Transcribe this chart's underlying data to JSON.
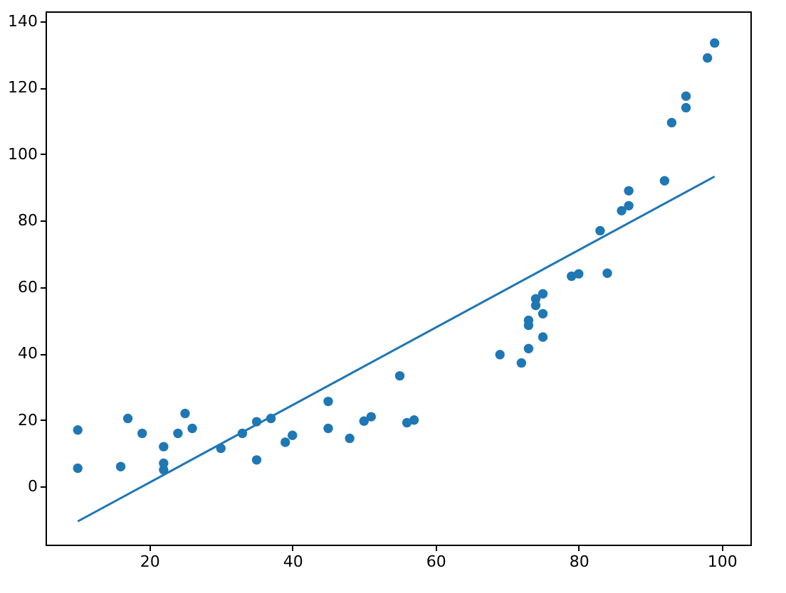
{
  "chart_data": {
    "type": "scatter",
    "xlim": [
      5.5,
      104
    ],
    "ylim": [
      -17.5,
      143
    ],
    "xticks": [
      20,
      40,
      60,
      80,
      100
    ],
    "yticks": [
      0,
      20,
      40,
      60,
      80,
      100,
      120,
      140
    ],
    "grid": false,
    "series": [
      {
        "marker": "circle",
        "color": "#1f77b4",
        "x": [
          10,
          10,
          16,
          17,
          19,
          22,
          22,
          22,
          24,
          25,
          26,
          30,
          33,
          35,
          35,
          37,
          39,
          40,
          45,
          45,
          48,
          50,
          51,
          55,
          56,
          57,
          69,
          72,
          73,
          73,
          73,
          74,
          74,
          75,
          75,
          75,
          79,
          80,
          83,
          84,
          86,
          87,
          87,
          92,
          93,
          95,
          95,
          98,
          99
        ],
        "values": [
          17,
          5.5,
          6,
          20.5,
          16,
          12,
          7,
          5,
          16,
          22,
          17.5,
          11.5,
          16,
          19.5,
          8,
          20.5,
          13.3,
          15.4,
          25.6,
          17.5,
          14.5,
          19.7,
          21,
          33.3,
          19.2,
          20,
          39.7,
          37.2,
          41.5,
          48.5,
          50,
          54.5,
          56.5,
          58,
          52,
          45,
          63.3,
          64,
          77,
          64.2,
          83,
          84.5,
          89,
          92,
          109.5,
          114,
          117.5,
          129,
          133.5
        ]
      },
      {
        "type": "line",
        "marker": "none",
        "line_style": "solid",
        "color": "#1f77b4",
        "x": [
          10,
          99
        ],
        "values": [
          -10.5,
          93.3
        ]
      }
    ]
  }
}
